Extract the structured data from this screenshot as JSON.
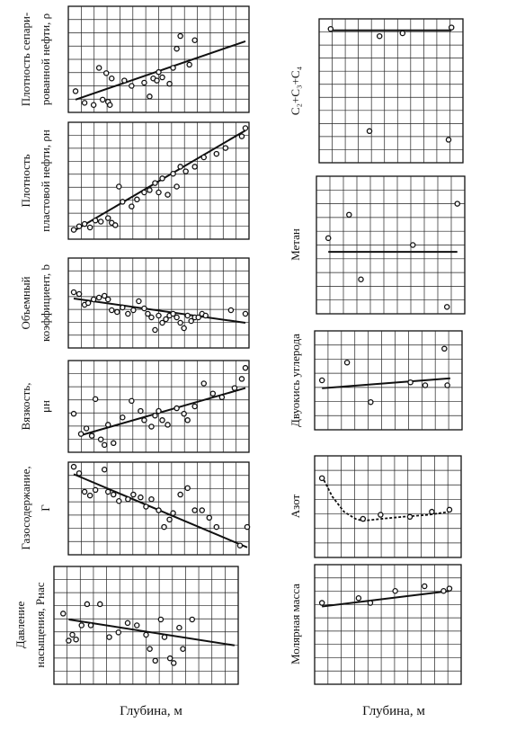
{
  "chart_data": [
    {
      "id": "sep-density",
      "type": "scatter",
      "column": "left",
      "ylabel": [
        "Плотность сепари-",
        "рованной нефти, ρ"
      ],
      "points": [
        [
          0.04,
          0.8
        ],
        [
          0.09,
          0.91
        ],
        [
          0.14,
          0.93
        ],
        [
          0.17,
          0.58
        ],
        [
          0.19,
          0.88
        ],
        [
          0.21,
          0.63
        ],
        [
          0.22,
          0.9
        ],
        [
          0.23,
          0.93
        ],
        [
          0.24,
          0.68
        ],
        [
          0.31,
          0.7
        ],
        [
          0.35,
          0.75
        ],
        [
          0.42,
          0.72
        ],
        [
          0.45,
          0.85
        ],
        [
          0.47,
          0.68
        ],
        [
          0.49,
          0.7
        ],
        [
          0.5,
          0.62
        ],
        [
          0.52,
          0.67
        ],
        [
          0.56,
          0.73
        ],
        [
          0.58,
          0.58
        ],
        [
          0.6,
          0.4
        ],
        [
          0.62,
          0.28
        ],
        [
          0.67,
          0.55
        ],
        [
          0.7,
          0.32
        ]
      ],
      "trend": {
        "kind": "linear",
        "from": [
          0.04,
          0.88
        ],
        "to": [
          0.98,
          0.33
        ]
      }
    },
    {
      "id": "reservoir-density",
      "type": "scatter",
      "column": "left",
      "ylabel": [
        "Плотность",
        "пластовой нефти, ρн"
      ],
      "points": [
        [
          0.03,
          0.92
        ],
        [
          0.06,
          0.89
        ],
        [
          0.09,
          0.87
        ],
        [
          0.12,
          0.9
        ],
        [
          0.15,
          0.84
        ],
        [
          0.18,
          0.85
        ],
        [
          0.22,
          0.82
        ],
        [
          0.24,
          0.86
        ],
        [
          0.26,
          0.88
        ],
        [
          0.28,
          0.55
        ],
        [
          0.3,
          0.68
        ],
        [
          0.35,
          0.72
        ],
        [
          0.38,
          0.66
        ],
        [
          0.42,
          0.6
        ],
        [
          0.45,
          0.58
        ],
        [
          0.48,
          0.52
        ],
        [
          0.5,
          0.6
        ],
        [
          0.52,
          0.48
        ],
        [
          0.55,
          0.62
        ],
        [
          0.58,
          0.44
        ],
        [
          0.6,
          0.55
        ],
        [
          0.62,
          0.38
        ],
        [
          0.65,
          0.42
        ],
        [
          0.7,
          0.38
        ],
        [
          0.75,
          0.3
        ],
        [
          0.82,
          0.27
        ],
        [
          0.87,
          0.22
        ],
        [
          0.96,
          0.12
        ],
        [
          0.98,
          0.05
        ]
      ],
      "trend": {
        "kind": "linear",
        "from": [
          0.03,
          0.93
        ],
        "to": [
          0.98,
          0.07
        ]
      }
    },
    {
      "id": "volume-factor",
      "type": "scatter",
      "column": "left",
      "ylabel": [
        "Объемный",
        "коэффициент, b"
      ],
      "points": [
        [
          0.03,
          0.38
        ],
        [
          0.06,
          0.4
        ],
        [
          0.09,
          0.52
        ],
        [
          0.11,
          0.5
        ],
        [
          0.14,
          0.46
        ],
        [
          0.17,
          0.44
        ],
        [
          0.2,
          0.42
        ],
        [
          0.22,
          0.46
        ],
        [
          0.24,
          0.58
        ],
        [
          0.27,
          0.6
        ],
        [
          0.3,
          0.55
        ],
        [
          0.33,
          0.62
        ],
        [
          0.36,
          0.58
        ],
        [
          0.39,
          0.48
        ],
        [
          0.42,
          0.56
        ],
        [
          0.44,
          0.62
        ],
        [
          0.46,
          0.66
        ],
        [
          0.48,
          0.8
        ],
        [
          0.5,
          0.64
        ],
        [
          0.52,
          0.72
        ],
        [
          0.54,
          0.68
        ],
        [
          0.56,
          0.64
        ],
        [
          0.58,
          0.62
        ],
        [
          0.6,
          0.66
        ],
        [
          0.62,
          0.72
        ],
        [
          0.64,
          0.78
        ],
        [
          0.66,
          0.64
        ],
        [
          0.68,
          0.7
        ],
        [
          0.7,
          0.66
        ],
        [
          0.72,
          0.66
        ],
        [
          0.74,
          0.62
        ],
        [
          0.76,
          0.64
        ],
        [
          0.9,
          0.58
        ],
        [
          0.98,
          0.62
        ]
      ],
      "trend": {
        "kind": "linear",
        "from": [
          0.03,
          0.45
        ],
        "to": [
          0.98,
          0.72
        ]
      }
    },
    {
      "id": "viscosity",
      "type": "scatter",
      "column": "left",
      "ylabel": [
        "Вязкость,",
        "μн"
      ],
      "points": [
        [
          0.03,
          0.58
        ],
        [
          0.07,
          0.8
        ],
        [
          0.1,
          0.74
        ],
        [
          0.13,
          0.82
        ],
        [
          0.15,
          0.42
        ],
        [
          0.18,
          0.86
        ],
        [
          0.2,
          0.92
        ],
        [
          0.22,
          0.7
        ],
        [
          0.25,
          0.9
        ],
        [
          0.3,
          0.62
        ],
        [
          0.35,
          0.44
        ],
        [
          0.4,
          0.55
        ],
        [
          0.42,
          0.65
        ],
        [
          0.46,
          0.72
        ],
        [
          0.48,
          0.6
        ],
        [
          0.5,
          0.55
        ],
        [
          0.52,
          0.65
        ],
        [
          0.55,
          0.7
        ],
        [
          0.6,
          0.52
        ],
        [
          0.64,
          0.58
        ],
        [
          0.66,
          0.65
        ],
        [
          0.7,
          0.5
        ],
        [
          0.75,
          0.25
        ],
        [
          0.8,
          0.36
        ],
        [
          0.85,
          0.4
        ],
        [
          0.92,
          0.3
        ],
        [
          0.96,
          0.2
        ],
        [
          0.98,
          0.08
        ]
      ],
      "trend": {
        "kind": "linear",
        "from": [
          0.06,
          0.82
        ],
        "to": [
          0.98,
          0.3
        ]
      }
    },
    {
      "id": "gas-content",
      "type": "scatter",
      "column": "left",
      "ylabel": [
        "Газосодержание,",
        "Г"
      ],
      "points": [
        [
          0.03,
          0.05
        ],
        [
          0.06,
          0.12
        ],
        [
          0.09,
          0.32
        ],
        [
          0.12,
          0.36
        ],
        [
          0.15,
          0.3
        ],
        [
          0.2,
          0.08
        ],
        [
          0.22,
          0.32
        ],
        [
          0.25,
          0.35
        ],
        [
          0.28,
          0.42
        ],
        [
          0.33,
          0.4
        ],
        [
          0.36,
          0.35
        ],
        [
          0.4,
          0.38
        ],
        [
          0.43,
          0.48
        ],
        [
          0.46,
          0.4
        ],
        [
          0.5,
          0.52
        ],
        [
          0.53,
          0.7
        ],
        [
          0.56,
          0.62
        ],
        [
          0.58,
          0.55
        ],
        [
          0.62,
          0.35
        ],
        [
          0.66,
          0.28
        ],
        [
          0.7,
          0.52
        ],
        [
          0.74,
          0.52
        ],
        [
          0.78,
          0.6
        ],
        [
          0.82,
          0.7
        ],
        [
          0.95,
          0.9
        ],
        [
          0.99,
          0.7
        ]
      ],
      "trend": {
        "kind": "linear",
        "from": [
          0.03,
          0.13
        ],
        "to": [
          0.99,
          0.92
        ]
      }
    },
    {
      "id": "saturation-pressure",
      "type": "scatter",
      "column": "left",
      "ylabel": [
        "Давление",
        "насыщения, Pнас"
      ],
      "points": [
        [
          0.05,
          0.4
        ],
        [
          0.08,
          0.63
        ],
        [
          0.1,
          0.58
        ],
        [
          0.12,
          0.62
        ],
        [
          0.15,
          0.5
        ],
        [
          0.18,
          0.32
        ],
        [
          0.2,
          0.5
        ],
        [
          0.25,
          0.32
        ],
        [
          0.3,
          0.6
        ],
        [
          0.35,
          0.56
        ],
        [
          0.4,
          0.48
        ],
        [
          0.45,
          0.5
        ],
        [
          0.5,
          0.58
        ],
        [
          0.52,
          0.7
        ],
        [
          0.55,
          0.8
        ],
        [
          0.58,
          0.45
        ],
        [
          0.6,
          0.6
        ],
        [
          0.63,
          0.78
        ],
        [
          0.65,
          0.82
        ],
        [
          0.68,
          0.52
        ],
        [
          0.7,
          0.7
        ],
        [
          0.75,
          0.45
        ]
      ],
      "trend": {
        "kind": "linear",
        "from": [
          0.08,
          0.45
        ],
        "to": [
          0.98,
          0.67
        ]
      }
    },
    {
      "id": "c2c4",
      "type": "scatter",
      "column": "right",
      "ylabel": [
        "C₂+C₃+C₄"
      ],
      "points": [
        [
          0.08,
          0.07
        ],
        [
          0.42,
          0.12
        ],
        [
          0.58,
          0.1
        ],
        [
          0.92,
          0.06
        ],
        [
          0.35,
          0.78
        ],
        [
          0.9,
          0.84
        ]
      ],
      "trend": {
        "kind": "linear",
        "from": [
          0.08,
          0.08
        ],
        "to": [
          0.92,
          0.08
        ]
      }
    },
    {
      "id": "methane",
      "type": "scatter",
      "column": "right",
      "ylabel": [
        "Метан"
      ],
      "points": [
        [
          0.08,
          0.45
        ],
        [
          0.22,
          0.28
        ],
        [
          0.3,
          0.75
        ],
        [
          0.65,
          0.5
        ],
        [
          0.95,
          0.2
        ],
        [
          0.88,
          0.95
        ]
      ],
      "trend": {
        "kind": "linear",
        "from": [
          0.08,
          0.55
        ],
        "to": [
          0.95,
          0.55
        ]
      }
    },
    {
      "id": "co2",
      "type": "scatter",
      "column": "right",
      "ylabel": [
        "Двуокись углерода"
      ],
      "points": [
        [
          0.05,
          0.5
        ],
        [
          0.22,
          0.32
        ],
        [
          0.38,
          0.72
        ],
        [
          0.65,
          0.52
        ],
        [
          0.75,
          0.55
        ],
        [
          0.88,
          0.18
        ],
        [
          0.9,
          0.55
        ]
      ],
      "trend": {
        "kind": "linear",
        "from": [
          0.05,
          0.58
        ],
        "to": [
          0.92,
          0.48
        ]
      }
    },
    {
      "id": "nitrogen",
      "type": "scatter",
      "column": "right",
      "ylabel": [
        "Азот"
      ],
      "points": [
        [
          0.05,
          0.22
        ],
        [
          0.33,
          0.62
        ],
        [
          0.45,
          0.58
        ],
        [
          0.65,
          0.6
        ],
        [
          0.8,
          0.55
        ],
        [
          0.92,
          0.53
        ]
      ],
      "trend": {
        "kind": "curve",
        "points": [
          [
            0.05,
            0.2
          ],
          [
            0.12,
            0.4
          ],
          [
            0.2,
            0.55
          ],
          [
            0.28,
            0.62
          ],
          [
            0.33,
            0.64
          ],
          [
            0.45,
            0.62
          ],
          [
            0.6,
            0.6
          ],
          [
            0.78,
            0.58
          ],
          [
            0.92,
            0.55
          ]
        ]
      }
    },
    {
      "id": "molar-mass",
      "type": "scatter",
      "column": "right",
      "ylabel": [
        "Молярная масса"
      ],
      "points": [
        [
          0.05,
          0.32
        ],
        [
          0.3,
          0.28
        ],
        [
          0.38,
          0.32
        ],
        [
          0.55,
          0.22
        ],
        [
          0.75,
          0.18
        ],
        [
          0.88,
          0.22
        ],
        [
          0.92,
          0.2
        ]
      ],
      "trend": {
        "kind": "linear",
        "from": [
          0.05,
          0.35
        ],
        "to": [
          0.92,
          0.22
        ]
      }
    }
  ],
  "xlabels": {
    "left": "Глубина, м",
    "right": "Глубина, м"
  },
  "colors": {
    "ink": "#111111",
    "grid": "#222222",
    "marker_fill": "#ffffff"
  }
}
